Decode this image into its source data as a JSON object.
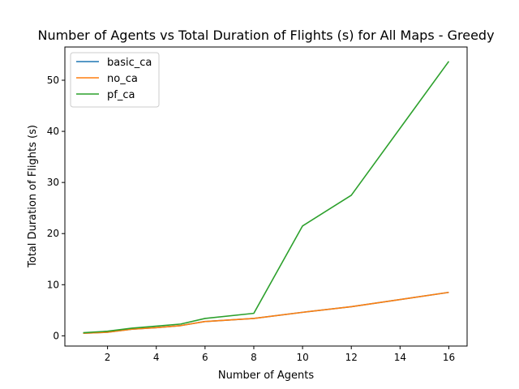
{
  "chart_data": {
    "type": "line",
    "title": "Number of Agents vs Total Duration of Flights (s) for All Maps - Greedy",
    "xlabel": "Number of Agents",
    "ylabel": "Total Duration of Flights (s)",
    "xlim": [
      0.25,
      16.75
    ],
    "ylim": [
      -2.0,
      56.5
    ],
    "xticks": [
      2,
      4,
      6,
      8,
      10,
      12,
      14,
      16
    ],
    "yticks": [
      0,
      10,
      20,
      30,
      40,
      50
    ],
    "grid": false,
    "legend_position": "top-left",
    "series": [
      {
        "name": "basic_ca",
        "color": "#1f77b4",
        "x": [
          1,
          2,
          3,
          4,
          5,
          6,
          8,
          10,
          12,
          16
        ],
        "y": [
          0.5,
          0.7,
          1.3,
          1.6,
          2.0,
          2.8,
          3.4,
          4.6,
          5.7,
          8.5
        ]
      },
      {
        "name": "no_ca",
        "color": "#ff7f0e",
        "x": [
          1,
          2,
          3,
          4,
          5,
          6,
          8,
          10,
          12,
          16
        ],
        "y": [
          0.5,
          0.7,
          1.3,
          1.6,
          2.0,
          2.8,
          3.4,
          4.6,
          5.7,
          8.5
        ]
      },
      {
        "name": "pf_ca",
        "color": "#2ca02c",
        "x": [
          1,
          2,
          3,
          4,
          5,
          6,
          8,
          10,
          12,
          16
        ],
        "y": [
          0.6,
          0.9,
          1.5,
          1.9,
          2.3,
          3.4,
          4.4,
          21.5,
          27.5,
          53.7
        ]
      }
    ]
  }
}
